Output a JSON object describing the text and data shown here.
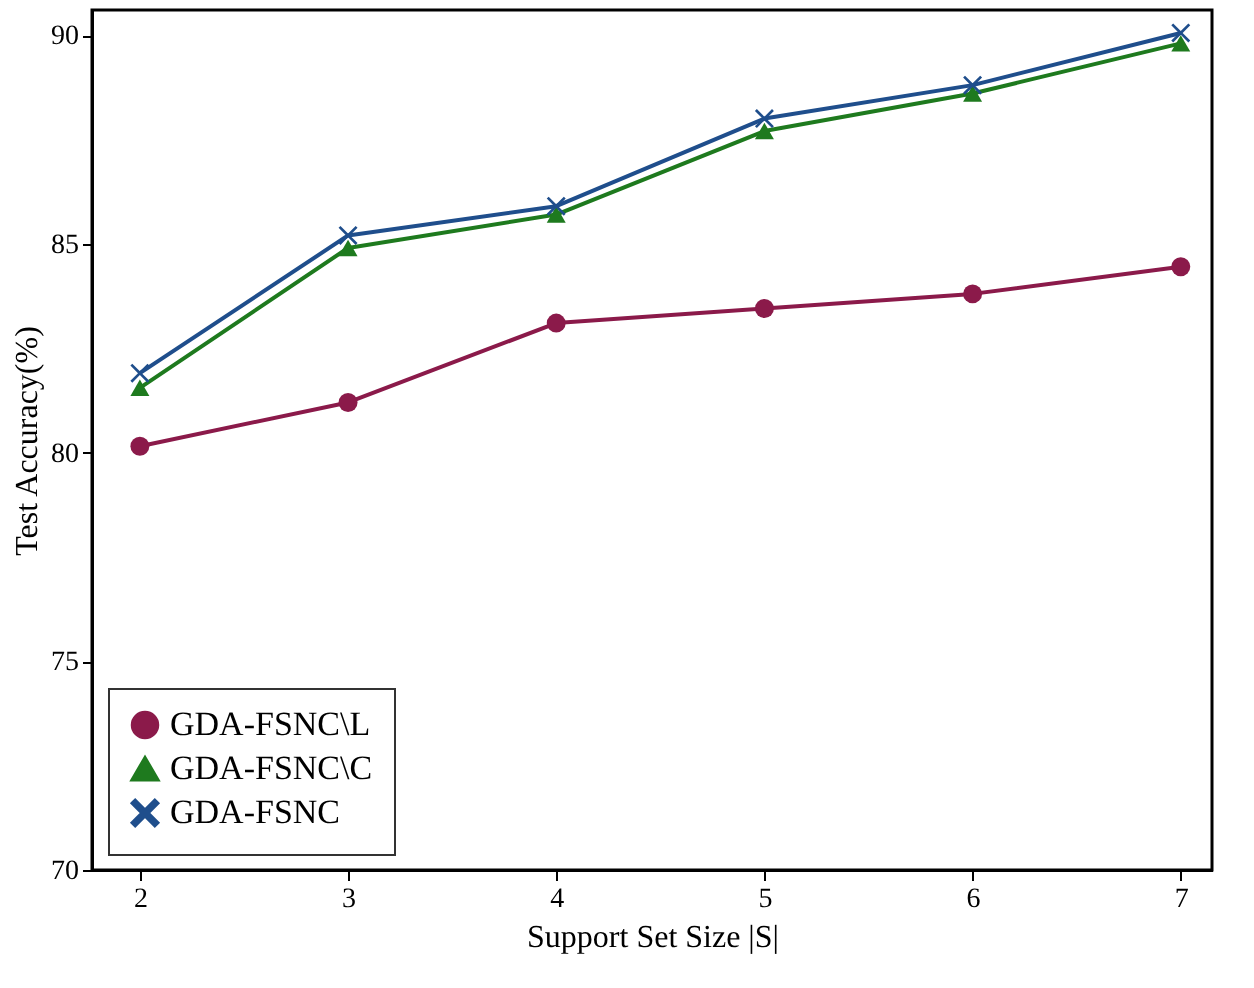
{
  "chart_data": {
    "type": "line",
    "xlabel": "Support Set Size |S|",
    "ylabel": "Test Accuracy(%)",
    "x": [
      2,
      3,
      4,
      5,
      6,
      7
    ],
    "series": [
      {
        "name": "GDA-FSNC\\L",
        "color": "#8b1a4a",
        "marker": "circle",
        "values": [
          80.15,
          81.2,
          83.1,
          83.45,
          83.8,
          84.45
        ]
      },
      {
        "name": "GDA-FSNC\\C",
        "color": "#1e7a1e",
        "marker": "triangle",
        "values": [
          81.55,
          84.9,
          85.7,
          87.7,
          88.6,
          89.8
        ]
      },
      {
        "name": "GDA-FSNC",
        "color": "#1f4e8c",
        "marker": "cross",
        "values": [
          81.9,
          85.2,
          85.9,
          88.0,
          88.8,
          90.05
        ]
      }
    ],
    "xlim": [
      1.77,
      7.15
    ],
    "ylim": [
      70,
      90.6
    ],
    "xticks": [
      2,
      3,
      4,
      5,
      6,
      7
    ],
    "yticks": [
      70,
      75,
      80,
      85,
      90
    ],
    "grid": false,
    "legend": "bottom left",
    "line_style": "solid"
  }
}
